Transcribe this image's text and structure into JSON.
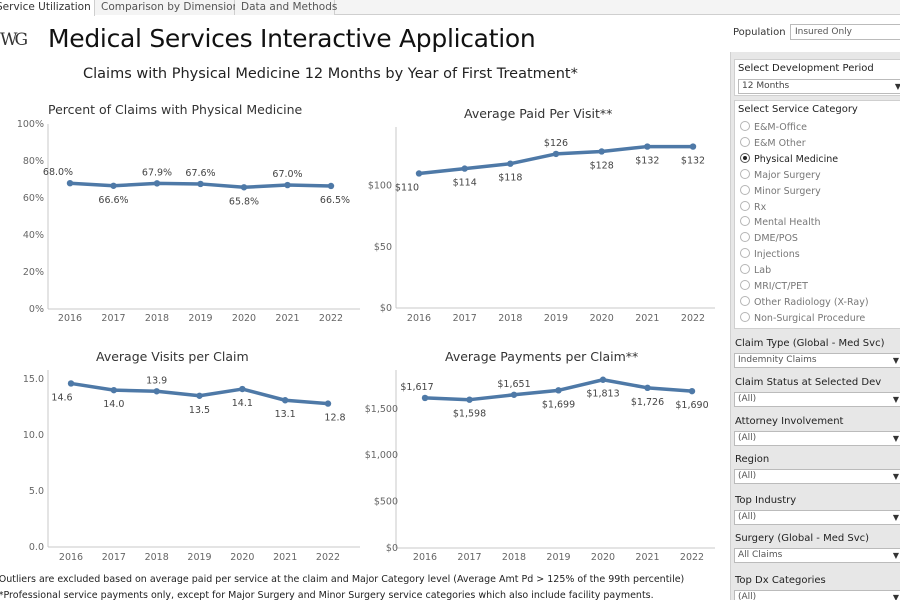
{
  "tabs": [
    {
      "label": "Service Utilization",
      "active": true
    },
    {
      "label": "Comparison by Dimension",
      "active": false
    },
    {
      "label": "Data and Methods",
      "active": false
    }
  ],
  "header": {
    "logo": "WG",
    "title": "Medical Services Interactive Application",
    "subtitle": "Claims with Physical Medicine 12 Months by Year of First Treatment*"
  },
  "colors": {
    "line": "#4e79a7",
    "axis": "#c8c8c8",
    "sidebar": "#e7e7e7"
  },
  "chart_data": [
    {
      "type": "line",
      "title": "Percent of Claims with Physical Medicine",
      "x": [
        "2016",
        "2017",
        "2018",
        "2019",
        "2020",
        "2021",
        "2022"
      ],
      "values": [
        68.0,
        66.6,
        67.9,
        67.6,
        65.8,
        67.0,
        66.5
      ],
      "labels": [
        "68.0%",
        "66.6%",
        "67.9%",
        "67.6%",
        "65.8%",
        "67.0%",
        "66.5%"
      ],
      "yticks": [
        "100%",
        "80%",
        "60%",
        "40%",
        "20%",
        "0%"
      ],
      "ylim": [
        0,
        100
      ]
    },
    {
      "type": "line",
      "title": "Average Paid Per Visit**",
      "x": [
        "2016",
        "2017",
        "2018",
        "2019",
        "2020",
        "2021",
        "2022"
      ],
      "values": [
        110,
        114,
        118,
        126,
        128,
        132,
        132
      ],
      "labels": [
        "$110",
        "$114",
        "$118",
        "$126",
        "$128",
        "$132",
        "$132"
      ],
      "yticks": [
        "$100",
        "$50",
        "$0"
      ],
      "ylim": [
        0,
        148
      ]
    },
    {
      "type": "line",
      "title": "Average Visits per Claim",
      "x": [
        "2016",
        "2017",
        "2018",
        "2019",
        "2020",
        "2021",
        "2022"
      ],
      "values": [
        14.6,
        14.0,
        13.9,
        13.5,
        14.1,
        13.1,
        12.8
      ],
      "labels": [
        "14.6",
        "14.0",
        "13.9",
        "13.5",
        "14.1",
        "13.1",
        "12.8"
      ],
      "yticks": [
        "15.0",
        "10.0",
        "5.0",
        "0.0"
      ],
      "ylim": [
        0,
        15.8
      ]
    },
    {
      "type": "line",
      "title": "Average Payments per Claim**",
      "x": [
        "2016",
        "2017",
        "2018",
        "2019",
        "2020",
        "2021",
        "2022"
      ],
      "values": [
        1617,
        1598,
        1651,
        1699,
        1813,
        1726,
        1690
      ],
      "labels": [
        "$1,617",
        "$1,598",
        "$1,651",
        "$1,699",
        "$1,813",
        "$1,726",
        "$1,690"
      ],
      "yticks": [
        "$1,500",
        "$1,000",
        "$500",
        "$0"
      ],
      "ylim": [
        0,
        1918
      ]
    }
  ],
  "footnotes": [
    "*Outliers are excluded based on average paid per service at the claim and Major Category level (Average Amt Pd > 125% of the 99th percentile)",
    "**Professional service payments only, except for Major Surgery and Minor Surgery service categories which also include facility payments."
  ],
  "sidebar": {
    "population_label": "Population",
    "population_value": "Insured Only",
    "dev_period_label": "Select Development Period",
    "dev_period_value": "12 Months",
    "service_category_label": "Select Service Category",
    "service_categories": [
      "E&M-Office",
      "E&M Other",
      "Physical Medicine",
      "Major Surgery",
      "Minor Surgery",
      "Rx",
      "Mental Health",
      "DME/POS",
      "Injections",
      "Lab",
      "MRI/CT/PET",
      "Other Radiology (X-Ray)",
      "Non-Surgical Procedure"
    ],
    "selected_category": "Physical Medicine",
    "filters": [
      {
        "label": "Claim Type (Global - Med Svc)",
        "value": "Indemnity Claims"
      },
      {
        "label": "Claim Status at Selected Dev",
        "value": "(All)"
      },
      {
        "label": "Attorney Involvement",
        "value": "(All)"
      },
      {
        "label": "Region",
        "value": "(All)"
      },
      {
        "label": "Top Industry",
        "value": "(All)"
      },
      {
        "label": "Surgery (Global - Med Svc)",
        "value": "All Claims"
      },
      {
        "label": "Top Dx Categories",
        "value": "(All)"
      }
    ]
  }
}
